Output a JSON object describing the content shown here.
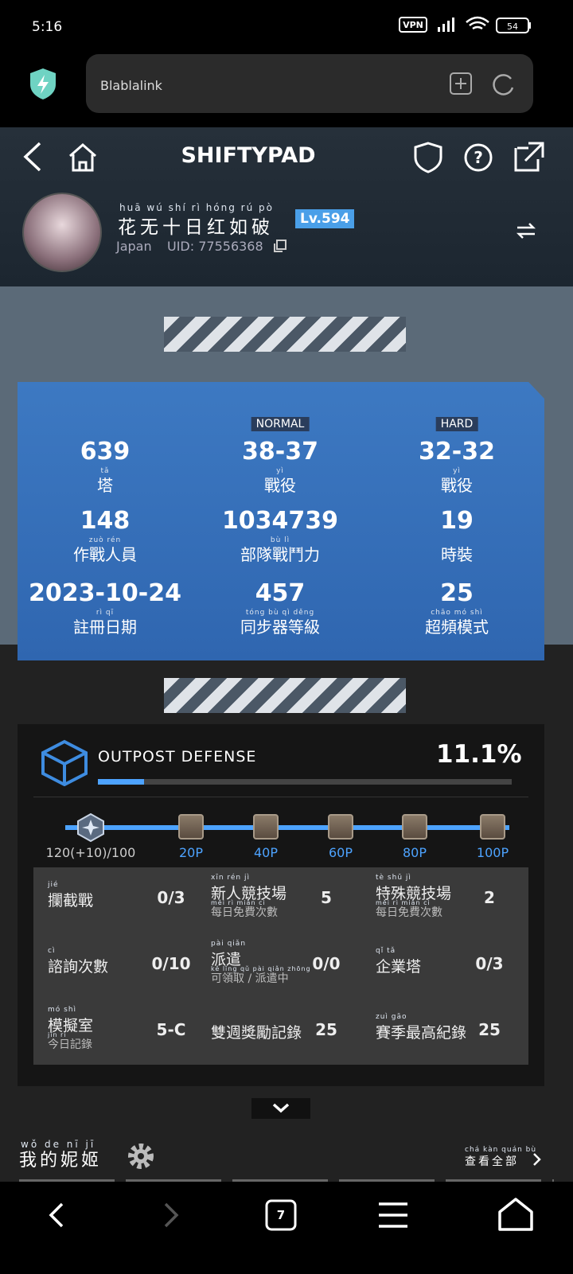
{
  "status_bar": {
    "time": "5:16",
    "battery": "54"
  },
  "browser": {
    "url": "Blablalink",
    "tab_count": "7"
  },
  "header": {
    "title": "SHIFTYPAD"
  },
  "profile": {
    "name": "花无十日红如破",
    "name_ruby": "huā wú shí rì hóng rú pò",
    "level": "Lv.594",
    "region": "Japan",
    "uid": "UID: 77556368"
  },
  "stats": {
    "column_headers": {
      "normal": "NORMAL",
      "hard": "HARD"
    },
    "rows": [
      [
        {
          "value": "639",
          "label": "塔",
          "ruby": "tǎ"
        },
        {
          "value": "38-37",
          "label": "戰役",
          "ruby": "yì"
        },
        {
          "value": "32-32",
          "label": "戰役",
          "ruby": "yì"
        }
      ],
      [
        {
          "value": "148",
          "label": "作戰人員",
          "ruby": "zuò rén"
        },
        {
          "value": "1034739",
          "label": "部隊戰鬥力",
          "ruby": "bù lì"
        },
        {
          "value": "19",
          "label": "時裝"
        }
      ],
      [
        {
          "value": "2023-10-24",
          "label": "註冊日期",
          "ruby": "rì qī"
        },
        {
          "value": "457",
          "label": "同步器等級",
          "ruby": "tóng bù qì děng"
        },
        {
          "value": "25",
          "label": "超頻模式",
          "ruby": "chāo mó shì"
        }
      ]
    ]
  },
  "outpost": {
    "title": "OUTPOST DEFENSE",
    "progress": {
      "value": 11.1,
      "label": "11.1%"
    },
    "current": "120(+10)/100",
    "milestones": [
      "20P",
      "40P",
      "60P",
      "80P",
      "100P"
    ]
  },
  "summary": {
    "rows": [
      [
        {
          "label": "攔截戰",
          "ruby": "jié",
          "value": "0/3"
        },
        {
          "label": "新人競技場",
          "ruby": "xīn rén jì",
          "sub": "每日免費次數",
          "sub_ruby": "měi rì miǎn cì",
          "value": "5"
        },
        {
          "label": "特殊競技場",
          "ruby": "tè shū jì",
          "sub": "每日免費次數",
          "sub_ruby": "měi rì miǎn cì",
          "value": "2"
        }
      ],
      [
        {
          "label": "諮詢次數",
          "ruby": "cì",
          "value": "0/10"
        },
        {
          "label": "派遣",
          "ruby": "pài qiǎn",
          "sub": "可領取 / 派遣中",
          "sub_ruby": "kě lǐng qǔ pài qiǎn zhōng",
          "value": "0/0"
        },
        {
          "label": "企業塔",
          "ruby": "qǐ tǎ",
          "value": "0/3"
        }
      ],
      [
        {
          "label": "模擬室",
          "ruby": "mó shì",
          "sub": "今日記錄",
          "sub_ruby": "jīn rì",
          "value": "5-C"
        },
        {
          "label": "雙週獎勵記錄",
          "value": "25"
        },
        {
          "label": "賽季最高紀錄",
          "ruby": "zuì gāo",
          "value": "25"
        }
      ]
    ]
  },
  "nikke": {
    "title": "我的妮姬",
    "title_ruby": "wǒ de nī jī",
    "view_all": "查看全部",
    "view_all_ruby": "chá kàn quán bù"
  }
}
